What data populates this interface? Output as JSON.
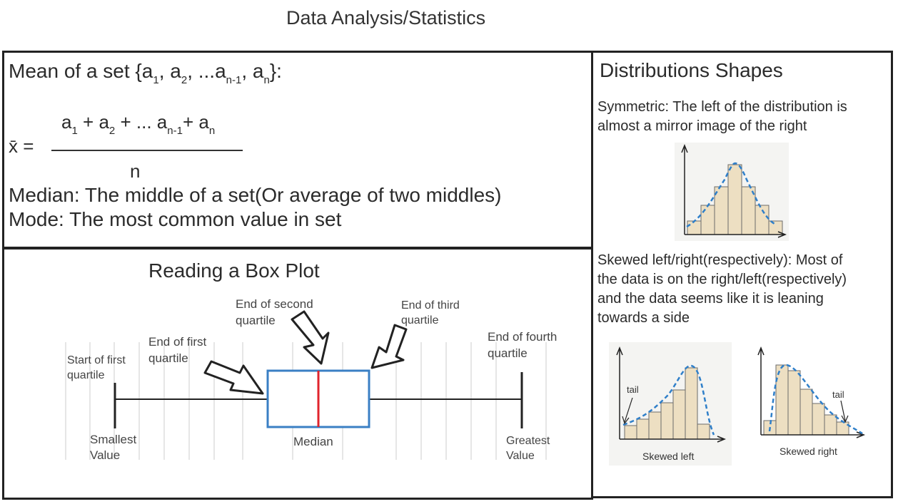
{
  "page_title": "Data Analysis/Statistics",
  "mean_panel": {
    "heading_prefix": "Mean of a set {a",
    "heading_items": [
      {
        "sub": "1",
        "after": ", a"
      },
      {
        "sub": "2",
        "after": ", ...a"
      },
      {
        "sub": "n-1",
        "after": ", a"
      },
      {
        "sub": "n",
        "after": "}:"
      }
    ],
    "numerator_parts": [
      {
        "text": "a",
        "sub": "1"
      },
      {
        "text": " + a",
        "sub": "2"
      },
      {
        "text": " + ... a",
        "sub": "n-1"
      },
      {
        "text": "+ a",
        "sub": "n"
      }
    ],
    "xbar_label": "x̄  =",
    "denominator": "n",
    "median_line": "Median: The middle of a set(Or average of two middles)",
    "mode_line": "Mode: The most common value in set"
  },
  "boxplot_panel": {
    "title": "Reading a Box Plot",
    "labels": {
      "start_first": [
        "Start of first",
        "quartile"
      ],
      "end_first": [
        "End of first",
        "quartile"
      ],
      "end_second": [
        "End of second",
        "quartile"
      ],
      "end_third": [
        "End of third",
        "quartile"
      ],
      "end_fourth": [
        "End of fourth",
        "quartile"
      ],
      "smallest": [
        "Smallest",
        "Value"
      ],
      "median": "Median",
      "greatest": [
        "Greatest",
        "Value"
      ]
    },
    "colors": {
      "box": "#3a7fc4",
      "median": "#e0242c",
      "whisker": "#222222",
      "grid": "#cccccc"
    }
  },
  "distribution_panel": {
    "title": "Distributions Shapes",
    "symmetric_text": [
      "Symmetric: The left of the distribution is",
      "almost a mirror image of the right"
    ],
    "skewed_text": [
      "Skewed left/right(respectively): Most of",
      "the data is on the right/left(respectively)",
      "and the data seems like it is leaning",
      "towards a side"
    ],
    "left_chart": {
      "tail_label": "tail",
      "caption": "Skewed left"
    },
    "right_chart": {
      "tail_label": "tail",
      "caption": "Skewed right"
    },
    "colors": {
      "bar_fill": "#eddfc2",
      "bar_stroke": "#6b6b6b",
      "curve": "#2f7fc9",
      "bg": "#f4f4f2"
    }
  }
}
